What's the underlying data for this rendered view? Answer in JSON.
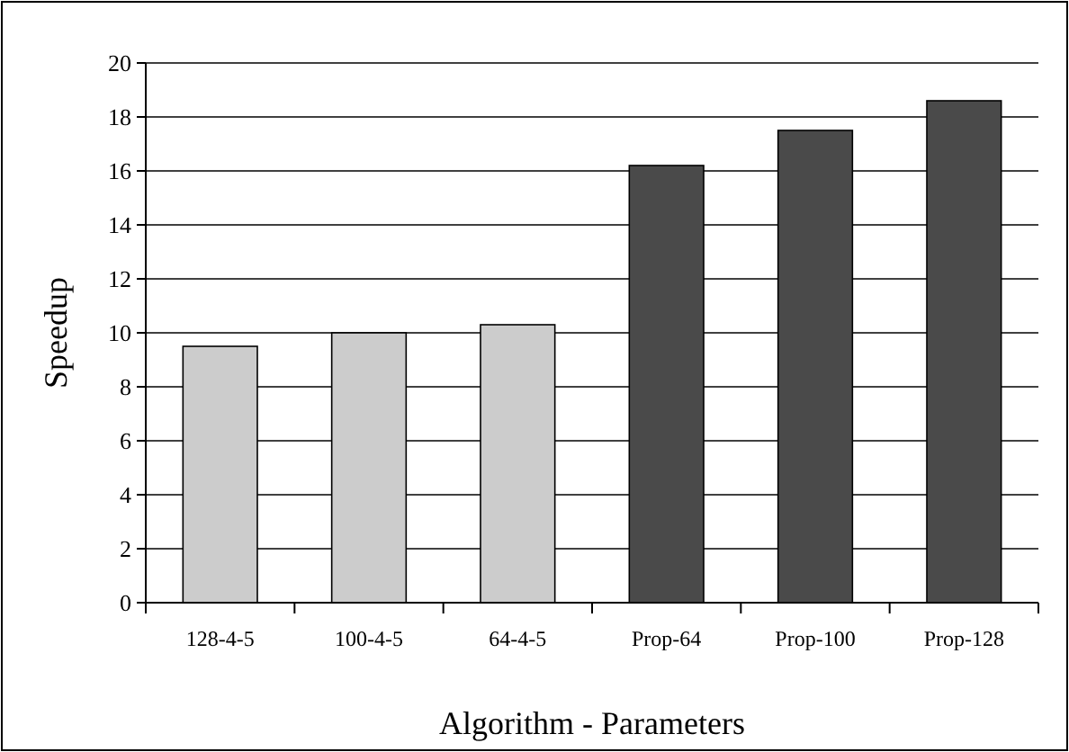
{
  "chart_data": {
    "type": "bar",
    "xlabel": "Algorithm - Parameters",
    "ylabel": "Speedup",
    "categories": [
      "128-4-5",
      "100-4-5",
      "64-4-5",
      "Prop-64",
      "Prop-100",
      "Prop-128"
    ],
    "values": [
      9.5,
      10,
      10.3,
      16.2,
      17.5,
      18.6
    ],
    "colors": [
      "#cccccc",
      "#cccccc",
      "#cccccc",
      "#4a4a4a",
      "#4a4a4a",
      "#4a4a4a"
    ],
    "ylim": [
      0,
      20
    ],
    "yticks": [
      0,
      2,
      4,
      6,
      8,
      10,
      12,
      14,
      16,
      18,
      20
    ],
    "grid": "y"
  }
}
